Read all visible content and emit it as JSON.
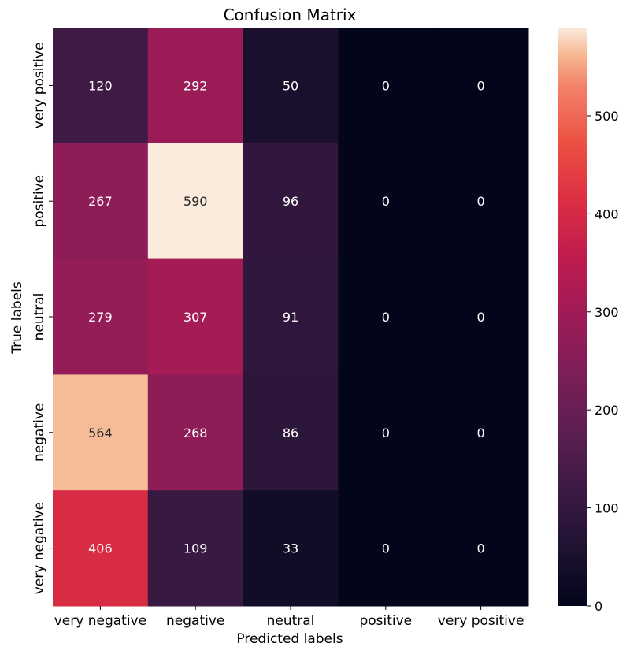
{
  "chart_data": {
    "type": "heatmap",
    "title": "Confusion Matrix",
    "xlabel": "Predicted labels",
    "ylabel": "True labels",
    "x_categories": [
      "very negative",
      "negative",
      "neutral",
      "positive",
      "very positive"
    ],
    "y_categories": [
      "very positive",
      "positive",
      "neutral",
      "negative",
      "very negative"
    ],
    "values": [
      [
        120,
        292,
        50,
        0,
        0
      ],
      [
        267,
        590,
        96,
        0,
        0
      ],
      [
        279,
        307,
        91,
        0,
        0
      ],
      [
        564,
        268,
        86,
        0,
        0
      ],
      [
        406,
        109,
        33,
        0,
        0
      ]
    ],
    "colorbar": {
      "vmin": 0,
      "vmax": 590,
      "ticks": [
        0,
        100,
        200,
        300,
        400,
        500
      ],
      "colormap": "rocket"
    }
  }
}
